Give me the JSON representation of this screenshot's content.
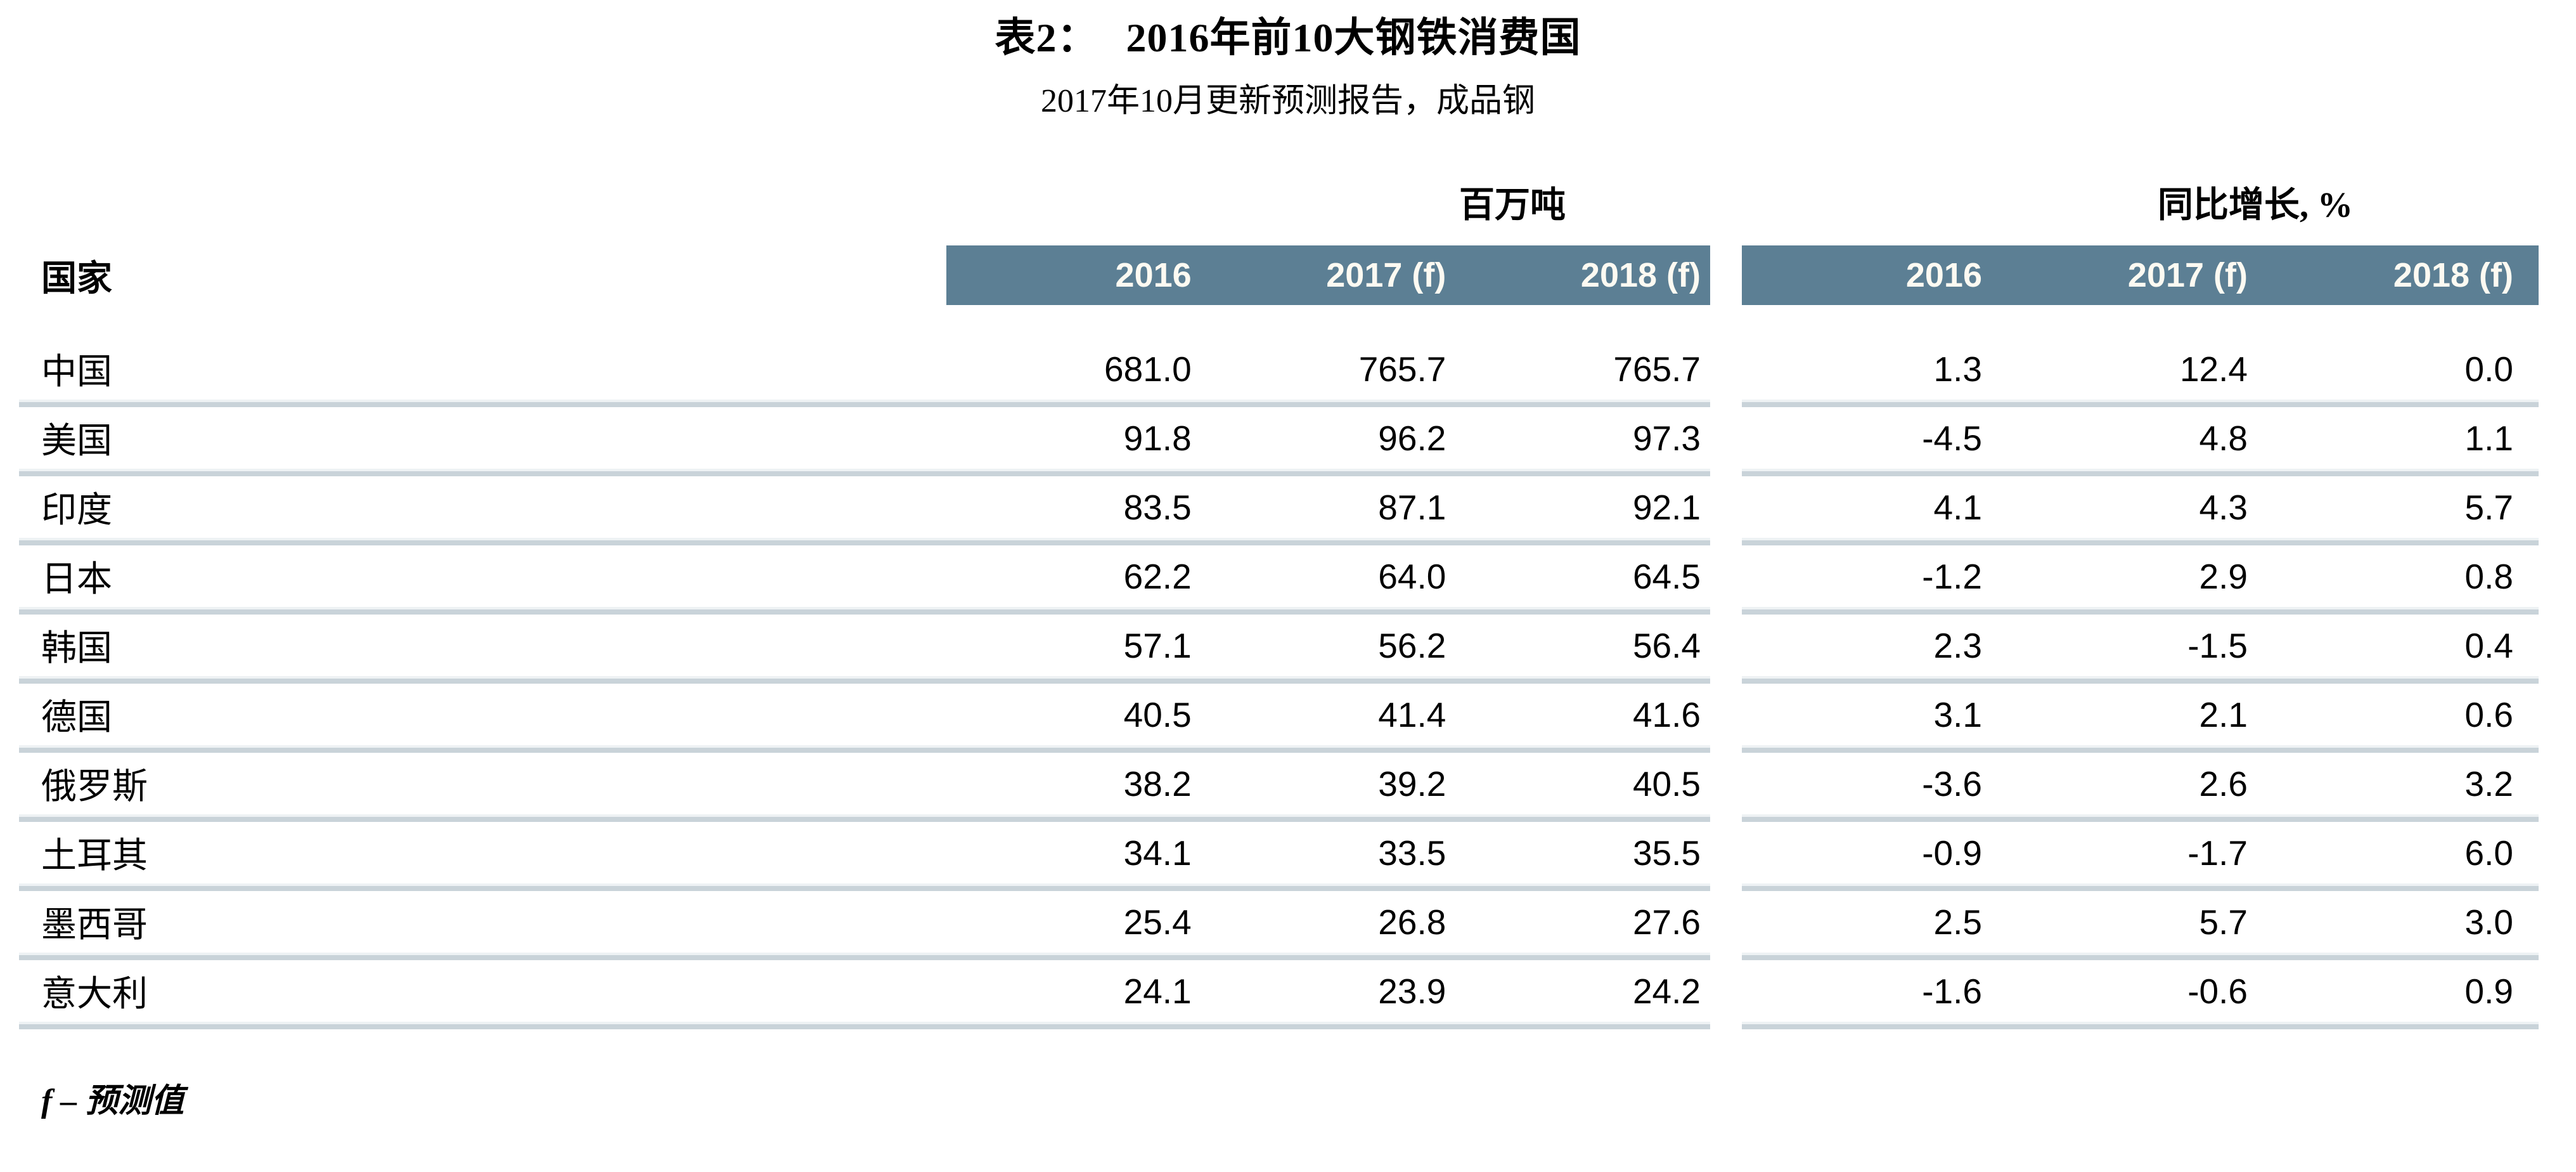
{
  "title": {
    "prefix": "表2：",
    "main": "2016年前10大钢铁消费国"
  },
  "subtitle": "2017年10月更新预测报告，成品钢",
  "table": {
    "row_header_label": "国家",
    "groups": [
      {
        "label": "百万吨",
        "columns": [
          "2016",
          "2017 (f)",
          "2018 (f)"
        ]
      },
      {
        "label": "同比增长, %",
        "columns": [
          "2016",
          "2017 (f)",
          "2018 (f)"
        ]
      }
    ],
    "rows": [
      {
        "country": "中国",
        "tonnes": [
          "681.0",
          "765.7",
          "765.7"
        ],
        "growth": [
          "1.3",
          "12.4",
          "0.0"
        ]
      },
      {
        "country": "美国",
        "tonnes": [
          "91.8",
          "96.2",
          "97.3"
        ],
        "growth": [
          "-4.5",
          "4.8",
          "1.1"
        ]
      },
      {
        "country": "印度",
        "tonnes": [
          "83.5",
          "87.1",
          "92.1"
        ],
        "growth": [
          "4.1",
          "4.3",
          "5.7"
        ]
      },
      {
        "country": "日本",
        "tonnes": [
          "62.2",
          "64.0",
          "64.5"
        ],
        "growth": [
          "-1.2",
          "2.9",
          "0.8"
        ]
      },
      {
        "country": "韩国",
        "tonnes": [
          "57.1",
          "56.2",
          "56.4"
        ],
        "growth": [
          "2.3",
          "-1.5",
          "0.4"
        ]
      },
      {
        "country": "德国",
        "tonnes": [
          "40.5",
          "41.4",
          "41.6"
        ],
        "growth": [
          "3.1",
          "2.1",
          "0.6"
        ]
      },
      {
        "country": "俄罗斯",
        "tonnes": [
          "38.2",
          "39.2",
          "40.5"
        ],
        "growth": [
          "-3.6",
          "2.6",
          "3.2"
        ]
      },
      {
        "country": "土耳其",
        "tonnes": [
          "34.1",
          "33.5",
          "35.5"
        ],
        "growth": [
          "-0.9",
          "-1.7",
          "6.0"
        ]
      },
      {
        "country": "墨西哥",
        "tonnes": [
          "25.4",
          "26.8",
          "27.6"
        ],
        "growth": [
          "2.5",
          "5.7",
          "3.0"
        ]
      },
      {
        "country": "意大利",
        "tonnes": [
          "24.1",
          "23.9",
          "24.2"
        ],
        "growth": [
          "-1.6",
          "-0.6",
          "0.9"
        ]
      }
    ]
  },
  "footnote": "f – 预测值",
  "colors": {
    "header_band": "#5c7f94",
    "header_text": "#fdfaf2",
    "separator": "#c9d3d9",
    "text": "#000000",
    "background": "#ffffff"
  }
}
